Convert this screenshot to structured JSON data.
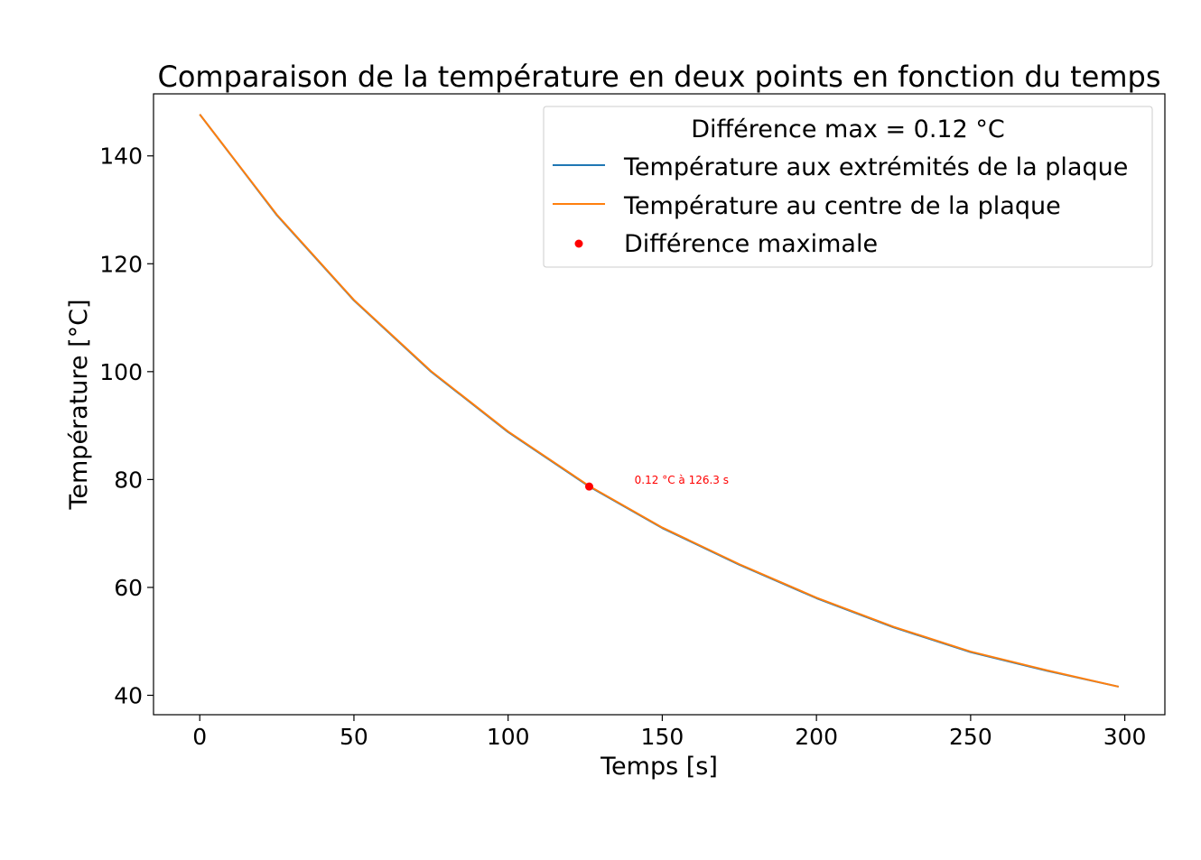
{
  "chart_data": {
    "type": "line",
    "title": "Comparaison de la température en deux points en fonction du temps",
    "xlabel": "Temps [s]",
    "ylabel": "Température [°C]",
    "xlim": [
      -15,
      313
    ],
    "ylim": [
      36.4,
      151.5
    ],
    "xticks": [
      0,
      50,
      100,
      150,
      200,
      250,
      300
    ],
    "yticks": [
      40,
      60,
      80,
      100,
      120,
      140
    ],
    "grid": false,
    "legend": {
      "title": "Différence max = 0.12 °C",
      "placement": "upper right",
      "entries": [
        {
          "label": "Température aux extrémités de la plaque",
          "color": "#1f77b4",
          "marker": "line"
        },
        {
          "label": "Température au centre de la plaque",
          "color": "#ff7f0e",
          "marker": "line"
        },
        {
          "label": "Différence maximale",
          "color": "#ff0000",
          "marker": "dot"
        }
      ]
    },
    "series": [
      {
        "label_ref": "Température aux extrémités de la plaque",
        "color": "#1f77b4",
        "x": [
          0,
          25,
          50,
          75,
          100,
          126.3,
          150,
          175,
          200,
          225,
          250,
          275,
          298
        ],
        "y": [
          147.7,
          129.0,
          113.2,
          100.0,
          88.8,
          78.7,
          71.0,
          64.2,
          58.0,
          52.6,
          48.0,
          44.5,
          41.6
        ]
      },
      {
        "label_ref": "Température au centre de la plaque",
        "color": "#ff7f0e",
        "x": [
          0,
          25,
          50,
          75,
          100,
          126.3,
          150,
          175,
          200,
          225,
          250,
          275,
          298
        ],
        "y": [
          147.7,
          129.1,
          113.3,
          100.1,
          88.9,
          78.8,
          71.1,
          64.3,
          58.1,
          52.7,
          48.1,
          44.6,
          41.6
        ]
      }
    ],
    "points": [
      {
        "label_ref": "Différence maximale",
        "color": "#ff0000",
        "x": 126.3,
        "y": 78.7
      }
    ],
    "annotations": [
      {
        "text": "0.12 °C à 126.3 s",
        "color": "#ff0000",
        "x": 141,
        "y": 79.2
      }
    ]
  }
}
